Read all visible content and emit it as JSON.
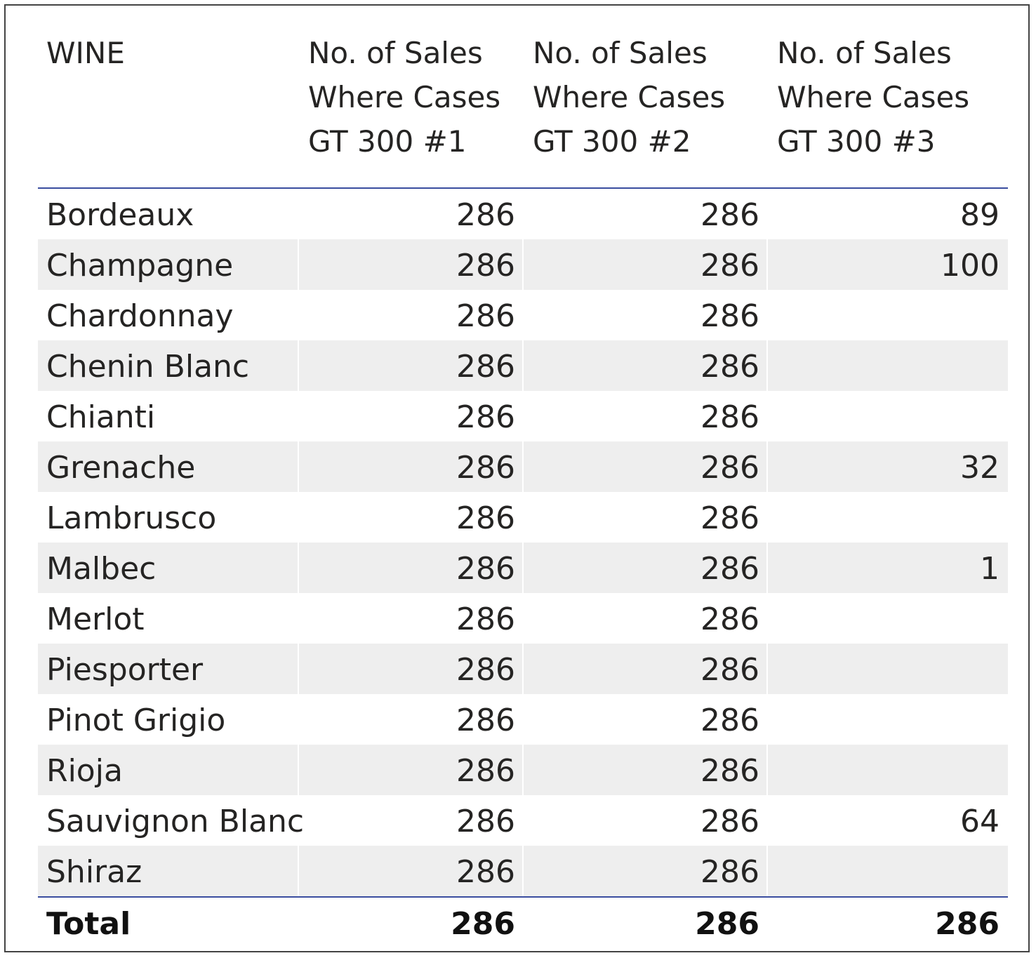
{
  "table": {
    "headers": [
      "WINE",
      "No. of Sales\nWhere Cases\nGT 300 #1",
      "No. of Sales\nWhere Cases\nGT 300 #2",
      "No. of Sales\nWhere Cases\nGT 300 #3"
    ],
    "rows": [
      {
        "wine": "Bordeaux",
        "gt300_1": "286",
        "gt300_2": "286",
        "gt300_3": "89"
      },
      {
        "wine": "Champagne",
        "gt300_1": "286",
        "gt300_2": "286",
        "gt300_3": "100"
      },
      {
        "wine": "Chardonnay",
        "gt300_1": "286",
        "gt300_2": "286",
        "gt300_3": ""
      },
      {
        "wine": "Chenin Blanc",
        "gt300_1": "286",
        "gt300_2": "286",
        "gt300_3": ""
      },
      {
        "wine": "Chianti",
        "gt300_1": "286",
        "gt300_2": "286",
        "gt300_3": ""
      },
      {
        "wine": "Grenache",
        "gt300_1": "286",
        "gt300_2": "286",
        "gt300_3": "32"
      },
      {
        "wine": "Lambrusco",
        "gt300_1": "286",
        "gt300_2": "286",
        "gt300_3": ""
      },
      {
        "wine": "Malbec",
        "gt300_1": "286",
        "gt300_2": "286",
        "gt300_3": "1"
      },
      {
        "wine": "Merlot",
        "gt300_1": "286",
        "gt300_2": "286",
        "gt300_3": ""
      },
      {
        "wine": "Piesporter",
        "gt300_1": "286",
        "gt300_2": "286",
        "gt300_3": ""
      },
      {
        "wine": "Pinot Grigio",
        "gt300_1": "286",
        "gt300_2": "286",
        "gt300_3": ""
      },
      {
        "wine": "Rioja",
        "gt300_1": "286",
        "gt300_2": "286",
        "gt300_3": ""
      },
      {
        "wine": "Sauvignon Blanc",
        "gt300_1": "286",
        "gt300_2": "286",
        "gt300_3": "64"
      },
      {
        "wine": "Shiraz",
        "gt300_1": "286",
        "gt300_2": "286",
        "gt300_3": ""
      }
    ],
    "total": {
      "label": "Total",
      "gt300_1": "286",
      "gt300_2": "286",
      "gt300_3": "286"
    }
  },
  "colors": {
    "alt_row_bg": "#eeeeee",
    "rule_color": "#3a4d9f",
    "frame_border": "#444444"
  }
}
